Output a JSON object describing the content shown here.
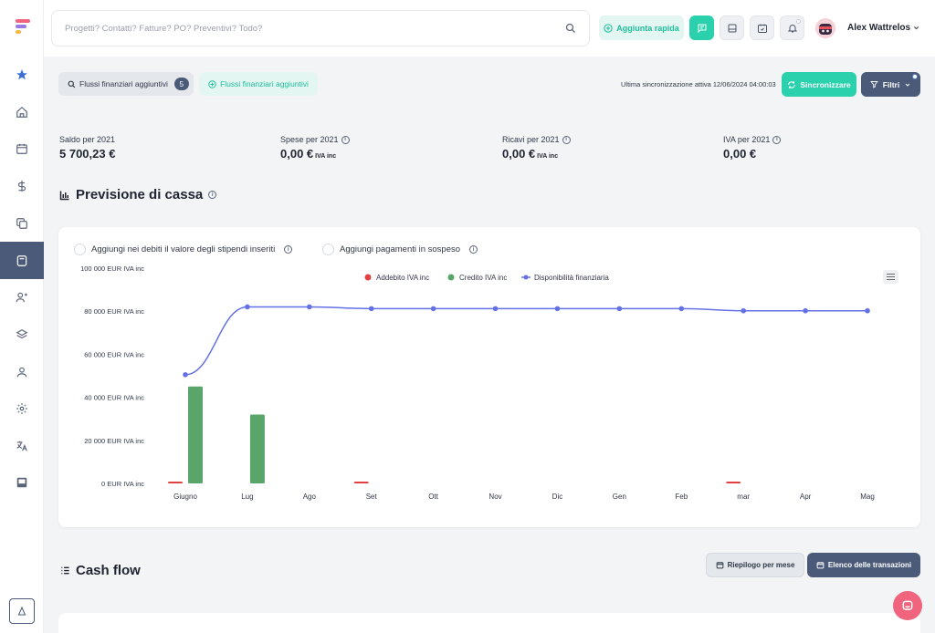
{
  "search": {
    "placeholder": "Progetti? Contatti? Fatture? PO? Preventivi? Todo?"
  },
  "topbar": {
    "quick_add_label": "Aggiunta rapida",
    "user_name": "Alex Wattrelos"
  },
  "actions": {
    "filter_pill_label": "Flussi finanziari aggiuntivi",
    "filter_pill_count": "5",
    "add_flow_label": "Flussi finanziari aggiuntivi",
    "last_sync": "Ultima sincronizzazione attiva 12/06/2024 04:00:03",
    "sync_label": "Sincronizzare",
    "filters_label": "Filtri"
  },
  "stats": [
    {
      "label": "Saldo per 2021",
      "value": "5 700,23 €",
      "suffix": ""
    },
    {
      "label": "Spese per 2021",
      "value": "0,00 €",
      "suffix": "IVA inc"
    },
    {
      "label": "Ricavi per 2021",
      "value": "0,00 €",
      "suffix": "IVA inc"
    },
    {
      "label": "IVA per 2021",
      "value": "0,00 €",
      "suffix": ""
    }
  ],
  "forecast": {
    "title": "Previsione di cassa",
    "checkbox_salaries": "Aggiungi nei debiti il valore degli stipendi inseriti",
    "checkbox_pending": "Aggiungi pagamenti in sospeso"
  },
  "cashflow": {
    "title": "Cash flow",
    "monthly_summary_label": "Riepilogo per mese",
    "transactions_label": "Elenco delle transazioni"
  },
  "colors": {
    "accent": "#2bd1ad",
    "primary": "#4a5a78",
    "debit": "#e0413f",
    "credit": "#5aa56a",
    "line": "#6470e6"
  },
  "chart_data": {
    "type": "bar",
    "categories": [
      "Giugno",
      "Lug",
      "Ago",
      "Set",
      "Ott",
      "Nov",
      "Dic",
      "Gen",
      "Feb",
      "mar",
      "Apr",
      "Mag"
    ],
    "ylim": [
      0,
      100000
    ],
    "y_ticks": [
      "0 EUR IVA inc",
      "20 000 EUR IVA inc",
      "40 000 EUR IVA inc",
      "60 000 EUR IVA inc",
      "80 000 EUR IVA inc",
      "100 000 EUR IVA inc"
    ],
    "y_tick_values": [
      0,
      20000,
      40000,
      60000,
      80000,
      100000
    ],
    "legend_position": "top-center",
    "series": [
      {
        "name": "Addebito IVA inc",
        "type": "bar",
        "color": "#e0413f",
        "values": [
          300,
          0,
          0,
          400,
          0,
          0,
          0,
          0,
          0,
          500,
          0,
          0
        ]
      },
      {
        "name": "Credito IVA inc",
        "type": "bar",
        "color": "#5aa56a",
        "values": [
          45000,
          32000,
          0,
          0,
          0,
          0,
          0,
          0,
          0,
          0,
          0,
          0
        ]
      },
      {
        "name": "Disponibilità finanziaria",
        "type": "line",
        "color": "#6470e6",
        "values": [
          50500,
          82000,
          82000,
          81200,
          81200,
          81200,
          81200,
          81200,
          81200,
          80200,
          80200,
          80200
        ]
      }
    ]
  }
}
